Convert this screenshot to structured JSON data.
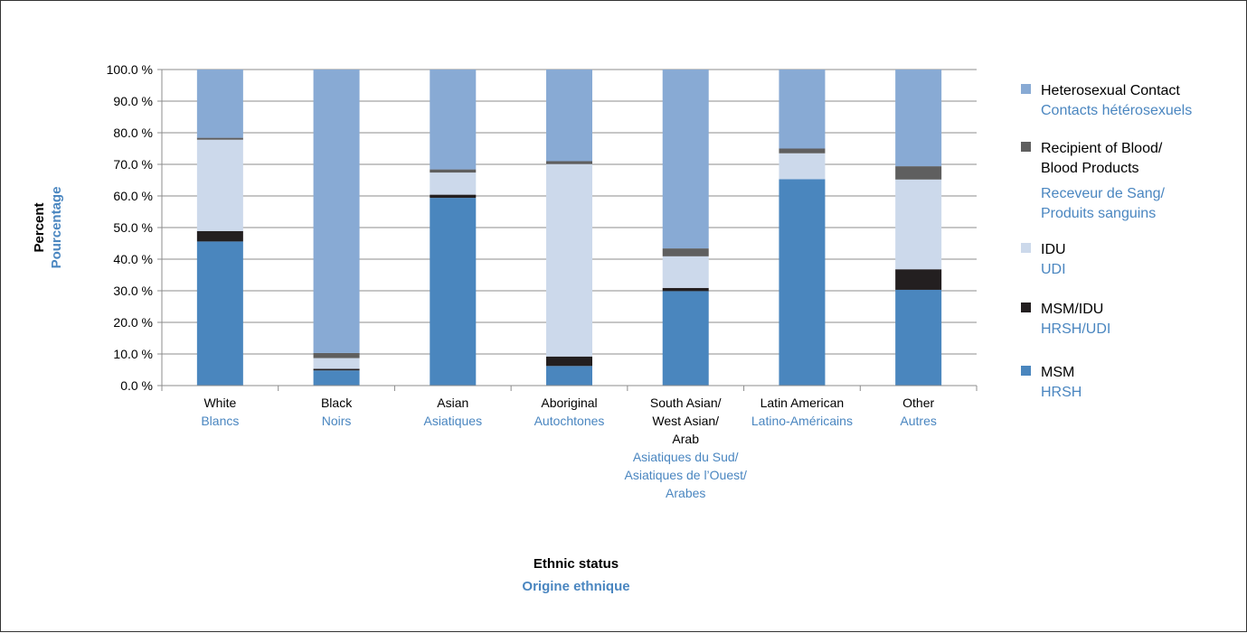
{
  "chart_data": {
    "type": "bar",
    "stacked": true,
    "categories": [
      {
        "en": [
          "White"
        ],
        "fr": [
          "Blancs"
        ]
      },
      {
        "en": [
          "Black"
        ],
        "fr": [
          "Noirs"
        ]
      },
      {
        "en": [
          "Asian"
        ],
        "fr": [
          "Asiatiques"
        ]
      },
      {
        "en": [
          "Aboriginal"
        ],
        "fr": [
          "Autochtones"
        ]
      },
      {
        "en": [
          "South Asian/",
          "West Asian/",
          "Arab"
        ],
        "fr": [
          "Asiatiques du Sud/",
          "Asiatiques de l’Ouest/",
          "Arabes"
        ]
      },
      {
        "en": [
          "Latin American"
        ],
        "fr": [
          "Latino-Américains"
        ]
      },
      {
        "en": [
          "Other"
        ],
        "fr": [
          "Autres"
        ]
      }
    ],
    "series": [
      {
        "key": "msm",
        "name_en": [
          "MSM"
        ],
        "name_fr": [
          "HRSH"
        ],
        "color": "#4a86be",
        "values": [
          45.6,
          4.8,
          59.4,
          6.2,
          29.9,
          65.3,
          30.3
        ]
      },
      {
        "key": "msm-idu",
        "name_en": [
          "MSM/IDU"
        ],
        "name_fr": [
          "HRSH/UDI"
        ],
        "color": "#231f20",
        "values": [
          3.3,
          0.5,
          1.0,
          3.0,
          1.0,
          0.0,
          6.5
        ]
      },
      {
        "key": "idu",
        "name_en": [
          "IDU"
        ],
        "name_fr": [
          "UDI"
        ],
        "color": "#ccd9eb",
        "values": [
          28.9,
          3.4,
          7.0,
          60.9,
          10.0,
          8.2,
          28.4
        ]
      },
      {
        "key": "blood",
        "name_en": [
          "Recipient of Blood/",
          "Blood Products"
        ],
        "name_fr": [
          "Receveur de Sang/",
          "Produits sanguins"
        ],
        "color": "#5f5f5f",
        "values": [
          0.6,
          1.6,
          1.0,
          0.9,
          2.5,
          1.5,
          4.2
        ]
      },
      {
        "key": "hetero",
        "name_en": [
          "Heterosexual Contact"
        ],
        "name_fr": [
          "Contacts hétérosexuels"
        ],
        "color": "#88aad4",
        "values": [
          21.6,
          89.7,
          31.6,
          29.0,
          56.6,
          25.0,
          30.6
        ]
      }
    ],
    "y_ticks": [
      "0.0 %",
      "10.0 %",
      "20.0 %",
      "30.0 %",
      "40.0 %",
      "50.0 %",
      "60.0 %",
      "70.0 %",
      "80.0 %",
      "90.0 %",
      "100.0 %"
    ],
    "ylim": [
      0,
      100
    ],
    "ylabel_en": "Percent",
    "ylabel_fr": "Pourcentage",
    "xlabel_en": "Ethnic status",
    "xlabel_fr": "Origine ethnique",
    "grid": true,
    "legend_position": "right"
  }
}
